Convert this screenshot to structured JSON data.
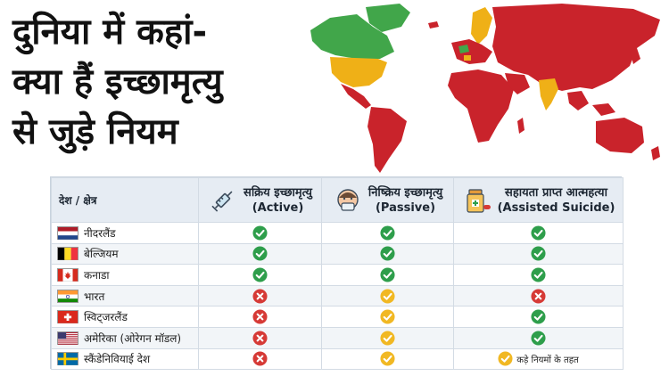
{
  "headline": [
    "दुनिया में कहां-",
    "क्या हैं इच्छामृत्यु",
    "से जुड़े नियम"
  ],
  "colors": {
    "yes": "#2e9e4b",
    "no": "#d63a36",
    "conditional": "#f1b823",
    "map_red": "#c9232b",
    "map_green": "#41a64a",
    "map_yellow": "#efb017"
  },
  "table": {
    "country_header": "देश / क्षेत्र",
    "columns": [
      {
        "title": "सक्रिय इच्छामृत्यु",
        "subtitle": "(Active)",
        "icon": "syringe-icon"
      },
      {
        "title": "निष्क्रिय इच्छामृत्यु",
        "subtitle": "(Passive)",
        "icon": "sick-person-icon"
      },
      {
        "title": "सहायता प्राप्त आत्महत्या",
        "subtitle": "(Assisted Suicide)",
        "icon": "medicine-bottle-icon"
      }
    ],
    "rows": [
      {
        "country": "नीदरलैंड",
        "flag": "netherlands",
        "status": [
          "yes",
          "yes",
          "yes"
        ],
        "notes": [
          "",
          "",
          ""
        ]
      },
      {
        "country": "बेल्जियम",
        "flag": "belgium",
        "status": [
          "yes",
          "yes",
          "yes"
        ],
        "notes": [
          "",
          "",
          ""
        ]
      },
      {
        "country": "कनाडा",
        "flag": "canada",
        "status": [
          "yes",
          "yes",
          "yes"
        ],
        "notes": [
          "",
          "",
          ""
        ]
      },
      {
        "country": "भारत",
        "flag": "india",
        "status": [
          "no",
          "conditional",
          "no"
        ],
        "notes": [
          "",
          "",
          ""
        ]
      },
      {
        "country": "स्विट्जरलैंड",
        "flag": "switzerland",
        "status": [
          "no",
          "conditional",
          "yes"
        ],
        "notes": [
          "",
          "",
          ""
        ]
      },
      {
        "country": "अमेरिका (ओरेगन मॉडल)",
        "flag": "usa",
        "status": [
          "no",
          "conditional",
          "yes"
        ],
        "notes": [
          "",
          "",
          ""
        ]
      },
      {
        "country": "स्कैंडेनिवियाई देश",
        "flag": "sweden",
        "status": [
          "no",
          "conditional",
          "conditional"
        ],
        "notes": [
          "",
          "",
          "कड़े नियमों के तहत"
        ]
      }
    ]
  }
}
